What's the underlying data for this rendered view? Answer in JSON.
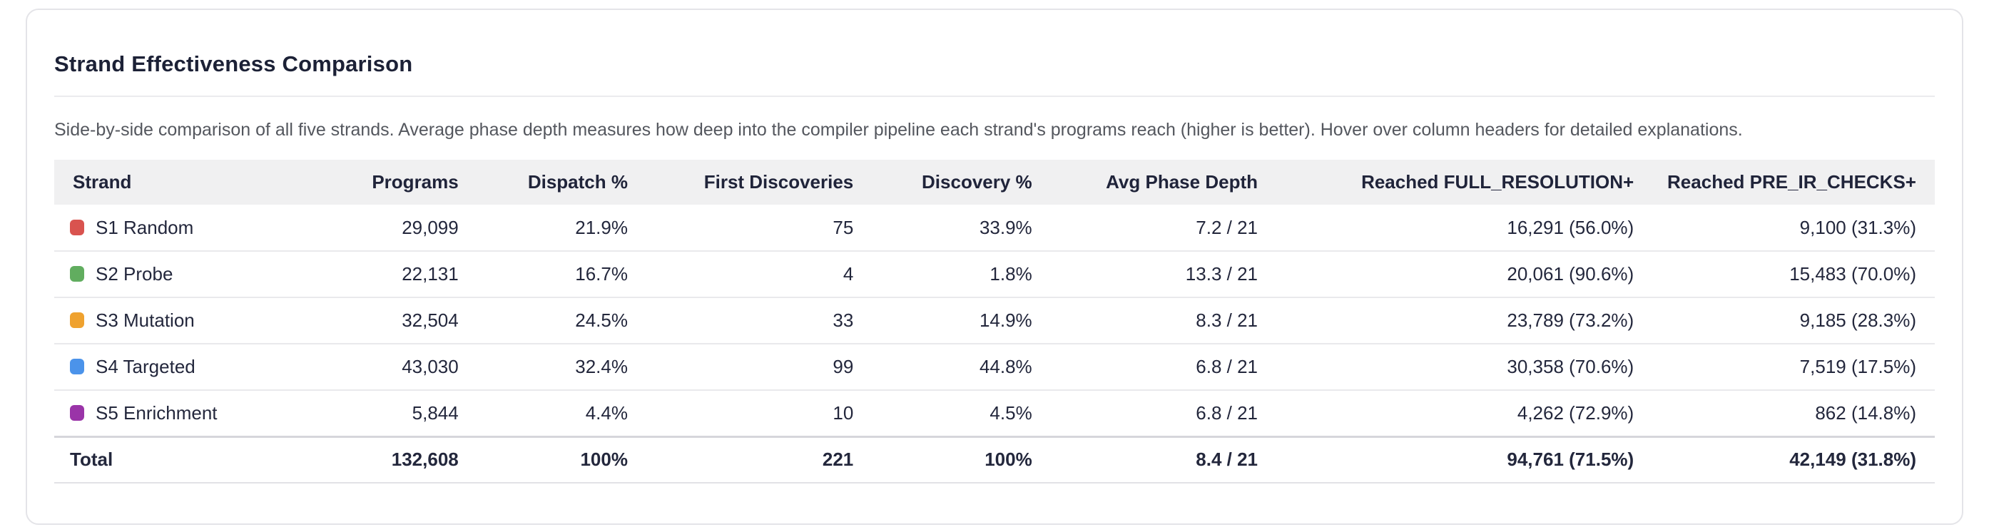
{
  "card": {
    "title": "Strand Effectiveness Comparison",
    "subtitle": "Side-by-side comparison of all five strands. Average phase depth measures how deep into the compiler pipeline each strand's programs reach (higher is better). Hover over column headers for detailed explanations."
  },
  "table": {
    "columns": [
      {
        "label": "Strand"
      },
      {
        "label": "Programs"
      },
      {
        "label": "Dispatch %"
      },
      {
        "label": "First Discoveries"
      },
      {
        "label": "Discovery %"
      },
      {
        "label": "Avg Phase Depth"
      },
      {
        "label": "Reached FULL_RESOLUTION+"
      },
      {
        "label": "Reached PRE_IR_CHECKS+"
      }
    ],
    "rows": [
      {
        "strand": "S1 Random",
        "color": "#d9534f",
        "programs": "29,099",
        "dispatch_pct": "21.9%",
        "first_discoveries": "75",
        "discovery_pct": "33.9%",
        "avg_phase_depth": "7.2 / 21",
        "reached_full_resolution": "16,291 (56.0%)",
        "reached_pre_ir_checks": "9,100 (31.3%)"
      },
      {
        "strand": "S2 Probe",
        "color": "#61ad5f",
        "programs": "22,131",
        "dispatch_pct": "16.7%",
        "first_discoveries": "4",
        "discovery_pct": "1.8%",
        "avg_phase_depth": "13.3 / 21",
        "reached_full_resolution": "20,061 (90.6%)",
        "reached_pre_ir_checks": "15,483 (70.0%)"
      },
      {
        "strand": "S3 Mutation",
        "color": "#efa22f",
        "programs": "32,504",
        "dispatch_pct": "24.5%",
        "first_discoveries": "33",
        "discovery_pct": "14.9%",
        "avg_phase_depth": "8.3 / 21",
        "reached_full_resolution": "23,789 (73.2%)",
        "reached_pre_ir_checks": "9,185 (28.3%)"
      },
      {
        "strand": "S4 Targeted",
        "color": "#4b93ea",
        "programs": "43,030",
        "dispatch_pct": "32.4%",
        "first_discoveries": "99",
        "discovery_pct": "44.8%",
        "avg_phase_depth": "6.8 / 21",
        "reached_full_resolution": "30,358 (70.6%)",
        "reached_pre_ir_checks": "7,519 (17.5%)"
      },
      {
        "strand": "S5 Enrichment",
        "color": "#9a34a8",
        "programs": "5,844",
        "dispatch_pct": "4.4%",
        "first_discoveries": "10",
        "discovery_pct": "4.5%",
        "avg_phase_depth": "6.8 / 21",
        "reached_full_resolution": "4,262 (72.9%)",
        "reached_pre_ir_checks": "862 (14.8%)"
      }
    ],
    "total": {
      "label": "Total",
      "programs": "132,608",
      "dispatch_pct": "100%",
      "first_discoveries": "221",
      "discovery_pct": "100%",
      "avg_phase_depth": "8.4 / 21",
      "reached_full_resolution": "94,761 (71.5%)",
      "reached_pre_ir_checks": "42,149 (31.8%)"
    }
  }
}
